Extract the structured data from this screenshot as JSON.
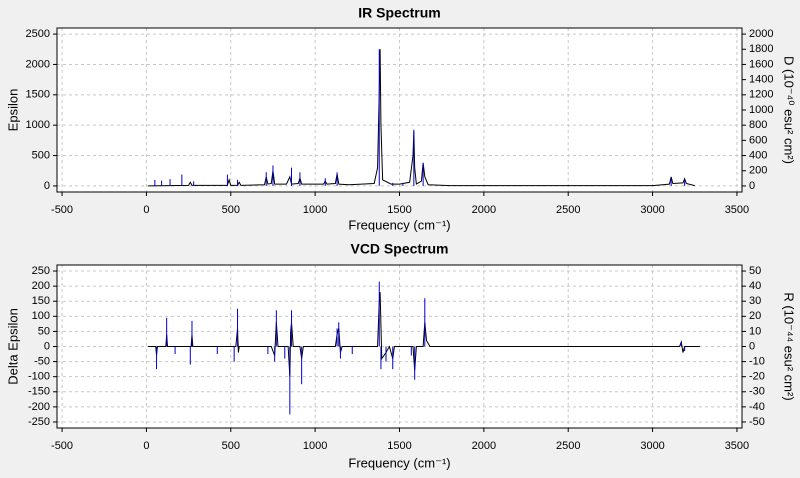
{
  "chart_data": [
    {
      "type": "line",
      "title": "IR Spectrum",
      "xlabel": "Frequency (cm⁻¹)",
      "ylabel": "Epsilon",
      "y2label": "D (10⁻⁴⁰ esu² cm²)",
      "xlim": [
        -530,
        3530
      ],
      "xticks": [
        -500,
        0,
        500,
        1000,
        1500,
        2000,
        2500,
        3000,
        3500
      ],
      "ylim": [
        -100,
        2600
      ],
      "yticks": [
        0,
        500,
        1000,
        1500,
        2000,
        2500
      ],
      "y2lim": [
        -80,
        2080
      ],
      "y2ticks": [
        0,
        200,
        400,
        600,
        800,
        1000,
        1200,
        1400,
        1600,
        1800,
        2000
      ],
      "grid": true,
      "series": [
        {
          "color": "#000000",
          "style": "line",
          "x": [
            10,
            250,
            260,
            270,
            480,
            490,
            500,
            540,
            550,
            560,
            700,
            710,
            720,
            740,
            750,
            760,
            830,
            850,
            860,
            900,
            910,
            920,
            1050,
            1060,
            1070,
            1120,
            1130,
            1140,
            1200,
            1350,
            1370,
            1380,
            1385,
            1390,
            1400,
            1450,
            1500,
            1560,
            1580,
            1585,
            1590,
            1600,
            1630,
            1640,
            1650,
            1670,
            1800,
            3000,
            3100,
            3110,
            3120,
            3180,
            3190,
            3200,
            3250
          ],
          "values": [
            0,
            10,
            60,
            10,
            10,
            100,
            10,
            10,
            60,
            10,
            20,
            150,
            30,
            40,
            250,
            30,
            30,
            150,
            30,
            40,
            130,
            30,
            30,
            80,
            30,
            40,
            200,
            30,
            20,
            40,
            300,
            1550,
            2250,
            1000,
            100,
            30,
            30,
            60,
            500,
            900,
            300,
            30,
            80,
            380,
            150,
            20,
            5,
            5,
            30,
            150,
            40,
            50,
            120,
            40,
            5
          ]
        },
        {
          "color": "#0000cc",
          "style": "stick",
          "axis": "y2",
          "x": [
            50,
            90,
            140,
            210,
            280,
            480,
            540,
            710,
            750,
            860,
            910,
            1060,
            1130,
            1380,
            1460,
            1520,
            1585,
            1640,
            3110,
            3190
          ],
          "values": [
            80,
            70,
            90,
            150,
            60,
            150,
            80,
            180,
            270,
            240,
            180,
            100,
            180,
            1800,
            40,
            40,
            740,
            300,
            100,
            80
          ]
        }
      ]
    },
    {
      "type": "line",
      "title": "VCD Spectrum",
      "xlabel": "Frequency (cm⁻¹)",
      "ylabel": "Delta Epsilon",
      "y2label": "R (10⁻⁴⁴ esu² cm²)",
      "xlim": [
        -530,
        3530
      ],
      "xticks": [
        -500,
        0,
        500,
        1000,
        1500,
        2000,
        2500,
        3000,
        3500
      ],
      "ylim": [
        -270,
        270
      ],
      "yticks": [
        -250,
        -200,
        -150,
        -100,
        -50,
        0,
        50,
        100,
        150,
        200,
        250
      ],
      "y2lim": [
        -54,
        54
      ],
      "y2ticks": [
        -50,
        -40,
        -30,
        -20,
        -10,
        0,
        10,
        20,
        30,
        40,
        50
      ],
      "grid": true,
      "series": [
        {
          "color": "#000000",
          "style": "line",
          "x": [
            10,
            55,
            60,
            65,
            115,
            120,
            125,
            265,
            270,
            275,
            530,
            540,
            545,
            550,
            740,
            760,
            770,
            780,
            840,
            850,
            855,
            860,
            870,
            910,
            920,
            930,
            1120,
            1130,
            1140,
            1150,
            1160,
            1370,
            1380,
            1385,
            1395,
            1420,
            1440,
            1460,
            1470,
            1580,
            1590,
            1600,
            1640,
            1650,
            1660,
            1680,
            3160,
            3170,
            3180,
            3190,
            3280
          ],
          "values": [
            0,
            0,
            -30,
            0,
            0,
            40,
            0,
            0,
            40,
            0,
            0,
            60,
            -20,
            0,
            0,
            -30,
            80,
            0,
            0,
            -100,
            50,
            80,
            0,
            0,
            -40,
            0,
            0,
            40,
            60,
            -20,
            0,
            0,
            150,
            180,
            -40,
            -20,
            0,
            -40,
            0,
            0,
            -80,
            0,
            0,
            80,
            20,
            0,
            0,
            15,
            -20,
            0,
            0
          ]
        },
        {
          "color": "#0000cc",
          "style": "stick",
          "axis": "y2",
          "x": [
            60,
            120,
            170,
            260,
            270,
            420,
            520,
            540,
            720,
            760,
            770,
            820,
            850,
            860,
            920,
            1130,
            1140,
            1150,
            1220,
            1380,
            1390,
            1420,
            1460,
            1570,
            1590,
            1650,
            3170,
            3190
          ],
          "values": [
            -15,
            19,
            -5,
            -12,
            17,
            -5,
            -10,
            25,
            -5,
            -10,
            24,
            -8,
            -45,
            24,
            -25,
            12,
            16,
            -8,
            -5,
            43,
            -15,
            -10,
            -15,
            -6,
            -22,
            32,
            3,
            -3
          ]
        }
      ]
    }
  ]
}
